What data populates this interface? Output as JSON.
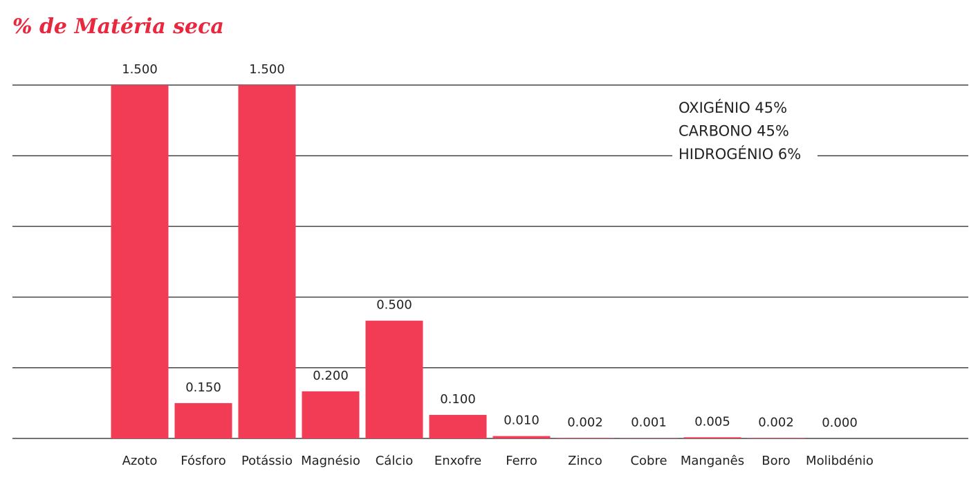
{
  "chart_data": {
    "type": "bar",
    "title": "% de Matéria seca",
    "categories": [
      "Azoto",
      "Fósforo",
      "Potássio",
      "Magnésio",
      "Cálcio",
      "Enxofre",
      "Ferro",
      "Zinco",
      "Cobre",
      "Manganês",
      "Boro",
      "Molibdénio"
    ],
    "values": [
      1.5,
      0.15,
      1.5,
      0.2,
      0.5,
      0.1,
      0.01,
      0.002,
      0.001,
      0.005,
      0.002,
      0.0
    ],
    "value_labels": [
      "1.500",
      "0.150",
      "1.500",
      "0.200",
      "0.500",
      "0.100",
      "0.010",
      "0.002",
      "0.001",
      "0.005",
      "0.002",
      "0.000"
    ],
    "color": "#f23c55",
    "ylim": [
      0,
      1.5
    ],
    "yticks": [
      0,
      0.3,
      0.6,
      0.9,
      1.2,
      1.5
    ],
    "grid": true,
    "annotations": [
      "OXIGÉNIO 45%",
      "CARBONO 45%",
      "HIDROGÉNIO 6%"
    ]
  }
}
